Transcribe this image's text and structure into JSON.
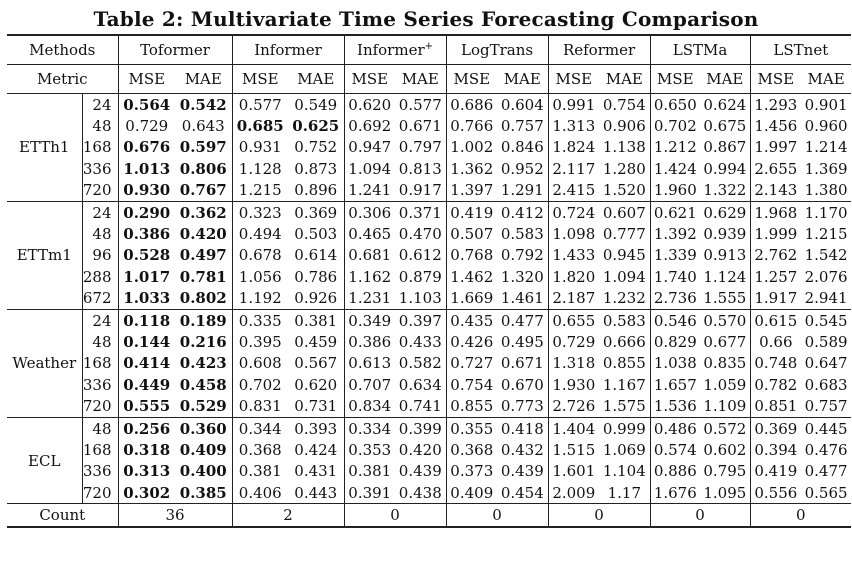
{
  "title": "Table 2: Multivariate Time Series Forecasting Comparison",
  "header": {
    "methods_label": "Methods",
    "metric_label": "Metric",
    "models": [
      "Toformer",
      "Informer",
      "Informer",
      "LogTrans",
      "Reformer",
      "LSTMa",
      "LSTnet"
    ],
    "informer_plus_sup": "+",
    "mse": "MSE",
    "mae": "MAE"
  },
  "datasets": [
    {
      "name": "ETTh1",
      "rows": [
        {
          "len": "24",
          "v": [
            "0.564",
            "0.542",
            "0.577",
            "0.549",
            "0.620",
            "0.577",
            "0.686",
            "0.604",
            "0.991",
            "0.754",
            "0.650",
            "0.624",
            "1.293",
            "0.901"
          ],
          "bold": [
            0,
            1
          ]
        },
        {
          "len": "48",
          "v": [
            "0.729",
            "0.643",
            "0.685",
            "0.625",
            "0.692",
            "0.671",
            "0.766",
            "0.757",
            "1.313",
            "0.906",
            "0.702",
            "0.675",
            "1.456",
            "0.960"
          ],
          "bold": [
            2,
            3
          ]
        },
        {
          "len": "168",
          "v": [
            "0.676",
            "0.597",
            "0.931",
            "0.752",
            "0.947",
            "0.797",
            "1.002",
            "0.846",
            "1.824",
            "1.138",
            "1.212",
            "0.867",
            "1.997",
            "1.214"
          ],
          "bold": [
            0,
            1
          ]
        },
        {
          "len": "336",
          "v": [
            "1.013",
            "0.806",
            "1.128",
            "0.873",
            "1.094",
            "0.813",
            "1.362",
            "0.952",
            "2.117",
            "1.280",
            "1.424",
            "0.994",
            "2.655",
            "1.369"
          ],
          "bold": [
            0,
            1
          ]
        },
        {
          "len": "720",
          "v": [
            "0.930",
            "0.767",
            "1.215",
            "0.896",
            "1.241",
            "0.917",
            "1.397",
            "1.291",
            "2.415",
            "1.520",
            "1.960",
            "1.322",
            "2.143",
            "1.380"
          ],
          "bold": [
            0,
            1
          ]
        }
      ]
    },
    {
      "name": "ETTm1",
      "rows": [
        {
          "len": "24",
          "v": [
            "0.290",
            "0.362",
            "0.323",
            "0.369",
            "0.306",
            "0.371",
            "0.419",
            "0.412",
            "0.724",
            "0.607",
            "0.621",
            "0.629",
            "1.968",
            "1.170"
          ],
          "bold": [
            0,
            1
          ]
        },
        {
          "len": "48",
          "v": [
            "0.386",
            "0.420",
            "0.494",
            "0.503",
            "0.465",
            "0.470",
            "0.507",
            "0.583",
            "1.098",
            "0.777",
            "1.392",
            "0.939",
            "1.999",
            "1.215"
          ],
          "bold": [
            0,
            1
          ]
        },
        {
          "len": "96",
          "v": [
            "0.528",
            "0.497",
            "0.678",
            "0.614",
            "0.681",
            "0.612",
            "0.768",
            "0.792",
            "1.433",
            "0.945",
            "1.339",
            "0.913",
            "2.762",
            "1.542"
          ],
          "bold": [
            0,
            1
          ]
        },
        {
          "len": "288",
          "v": [
            "1.017",
            "0.781",
            "1.056",
            "0.786",
            "1.162",
            "0.879",
            "1.462",
            "1.320",
            "1.820",
            "1.094",
            "1.740",
            "1.124",
            "1.257",
            "2.076"
          ],
          "bold": [
            0,
            1
          ]
        },
        {
          "len": "672",
          "v": [
            "1.033",
            "0.802",
            "1.192",
            "0.926",
            "1.231",
            "1.103",
            "1.669",
            "1.461",
            "2.187",
            "1.232",
            "2.736",
            "1.555",
            "1.917",
            "2.941"
          ],
          "bold": [
            0,
            1
          ]
        }
      ]
    },
    {
      "name": "Weather",
      "rows": [
        {
          "len": "24",
          "v": [
            "0.118",
            "0.189",
            "0.335",
            "0.381",
            "0.349",
            "0.397",
            "0.435",
            "0.477",
            "0.655",
            "0.583",
            "0.546",
            "0.570",
            "0.615",
            "0.545"
          ],
          "bold": [
            0,
            1
          ]
        },
        {
          "len": "48",
          "v": [
            "0.144",
            "0.216",
            "0.395",
            "0.459",
            "0.386",
            "0.433",
            "0.426",
            "0.495",
            "0.729",
            "0.666",
            "0.829",
            "0.677",
            "0.66",
            "0.589"
          ],
          "bold": [
            0,
            1
          ]
        },
        {
          "len": "168",
          "v": [
            "0.414",
            "0.423",
            "0.608",
            "0.567",
            "0.613",
            "0.582",
            "0.727",
            "0.671",
            "1.318",
            "0.855",
            "1.038",
            "0.835",
            "0.748",
            "0.647"
          ],
          "bold": [
            0,
            1
          ]
        },
        {
          "len": "336",
          "v": [
            "0.449",
            "0.458",
            "0.702",
            "0.620",
            "0.707",
            "0.634",
            "0.754",
            "0.670",
            "1.930",
            "1.167",
            "1.657",
            "1.059",
            "0.782",
            "0.683"
          ],
          "bold": [
            0,
            1
          ]
        },
        {
          "len": "720",
          "v": [
            "0.555",
            "0.529",
            "0.831",
            "0.731",
            "0.834",
            "0.741",
            "0.855",
            "0.773",
            "2.726",
            "1.575",
            "1.536",
            "1.109",
            "0.851",
            "0.757"
          ],
          "bold": [
            0,
            1
          ]
        }
      ]
    },
    {
      "name": "ECL",
      "rows": [
        {
          "len": "48",
          "v": [
            "0.256",
            "0.360",
            "0.344",
            "0.393",
            "0.334",
            "0.399",
            "0.355",
            "0.418",
            "1.404",
            "0.999",
            "0.486",
            "0.572",
            "0.369",
            "0.445"
          ],
          "bold": [
            0,
            1
          ]
        },
        {
          "len": "168",
          "v": [
            "0.318",
            "0.409",
            "0.368",
            "0.424",
            "0.353",
            "0.420",
            "0.368",
            "0.432",
            "1.515",
            "1.069",
            "0.574",
            "0.602",
            "0.394",
            "0.476"
          ],
          "bold": [
            0,
            1
          ]
        },
        {
          "len": "336",
          "v": [
            "0.313",
            "0.400",
            "0.381",
            "0.431",
            "0.381",
            "0.439",
            "0.373",
            "0.439",
            "1.601",
            "1.104",
            "0.886",
            "0.795",
            "0.419",
            "0.477"
          ],
          "bold": [
            0,
            1
          ]
        },
        {
          "len": "720",
          "v": [
            "0.302",
            "0.385",
            "0.406",
            "0.443",
            "0.391",
            "0.438",
            "0.409",
            "0.454",
            "2.009",
            "1.17",
            "1.676",
            "1.095",
            "0.556",
            "0.565"
          ],
          "bold": [
            0,
            1
          ]
        }
      ]
    }
  ],
  "count": {
    "label": "Count",
    "values": [
      "36",
      "2",
      "0",
      "0",
      "0",
      "0",
      "0"
    ]
  }
}
